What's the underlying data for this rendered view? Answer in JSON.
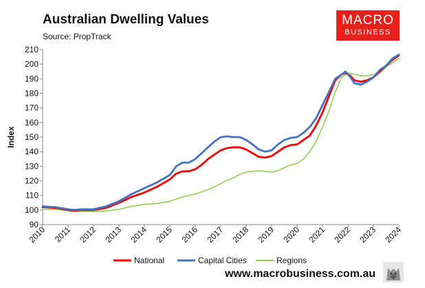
{
  "header": {
    "title": "Australian Dwelling Values",
    "subtitle": "Source: PropTrack"
  },
  "logo": {
    "line1": "MACRO",
    "line2": "BUSINESS"
  },
  "footer": {
    "website": "www.macrobusiness.com.au"
  },
  "colors": {
    "national": "#ff0000",
    "capital": "#4472c4",
    "regions": "#92d050"
  },
  "chart_data": {
    "type": "line",
    "title": "Australian Dwelling Values",
    "xlabel": "",
    "ylabel": "Index",
    "xlim": [
      2010,
      2024
    ],
    "ylim": [
      90,
      210
    ],
    "yticks": [
      90,
      100,
      110,
      120,
      130,
      140,
      150,
      160,
      170,
      180,
      190,
      200,
      210
    ],
    "xticks": [
      2010,
      2011,
      2012,
      2013,
      2014,
      2015,
      2016,
      2017,
      2018,
      2019,
      2020,
      2021,
      2022,
      2023,
      2024
    ],
    "grid": false,
    "legend": "bottom",
    "series": [
      {
        "name": "National",
        "color": "#ff0000",
        "points": [
          [
            2010.0,
            102
          ],
          [
            2010.5,
            101.5
          ],
          [
            2011.0,
            100
          ],
          [
            2011.25,
            99.5
          ],
          [
            2011.5,
            100
          ],
          [
            2012.0,
            100
          ],
          [
            2012.5,
            101.5
          ],
          [
            2013.0,
            105
          ],
          [
            2013.5,
            109
          ],
          [
            2014.0,
            112
          ],
          [
            2014.5,
            116
          ],
          [
            2015.0,
            121
          ],
          [
            2015.25,
            125
          ],
          [
            2015.5,
            126.5
          ],
          [
            2015.75,
            126.5
          ],
          [
            2016.0,
            128
          ],
          [
            2016.25,
            131
          ],
          [
            2016.5,
            135
          ],
          [
            2016.75,
            138
          ],
          [
            2017.0,
            141
          ],
          [
            2017.25,
            142.5
          ],
          [
            2017.5,
            143
          ],
          [
            2017.75,
            143
          ],
          [
            2018.0,
            141.5
          ],
          [
            2018.25,
            139
          ],
          [
            2018.5,
            136.5
          ],
          [
            2018.75,
            136
          ],
          [
            2019.0,
            137
          ],
          [
            2019.25,
            140
          ],
          [
            2019.5,
            143
          ],
          [
            2019.75,
            144.5
          ],
          [
            2020.0,
            145
          ],
          [
            2020.25,
            148
          ],
          [
            2020.5,
            151
          ],
          [
            2020.75,
            158
          ],
          [
            2021.0,
            167
          ],
          [
            2021.25,
            178
          ],
          [
            2021.5,
            189
          ],
          [
            2021.75,
            193
          ],
          [
            2021.9,
            194
          ],
          [
            2022.1,
            192
          ],
          [
            2022.25,
            189
          ],
          [
            2022.5,
            188
          ],
          [
            2022.75,
            189
          ],
          [
            2023.0,
            191
          ],
          [
            2023.25,
            195
          ],
          [
            2023.5,
            199
          ],
          [
            2023.75,
            203
          ],
          [
            2024.0,
            206
          ]
        ]
      },
      {
        "name": "Capital Cities",
        "color": "#4472c4",
        "points": [
          [
            2010.0,
            102.5
          ],
          [
            2010.5,
            102
          ],
          [
            2011.0,
            100.5
          ],
          [
            2011.25,
            100
          ],
          [
            2011.5,
            100.5
          ],
          [
            2012.0,
            100.5
          ],
          [
            2012.5,
            102.5
          ],
          [
            2013.0,
            106
          ],
          [
            2013.5,
            111
          ],
          [
            2014.0,
            115
          ],
          [
            2014.5,
            119
          ],
          [
            2015.0,
            124
          ],
          [
            2015.25,
            130
          ],
          [
            2015.5,
            132.5
          ],
          [
            2015.75,
            132.5
          ],
          [
            2016.0,
            135
          ],
          [
            2016.25,
            139
          ],
          [
            2016.5,
            143
          ],
          [
            2016.75,
            147
          ],
          [
            2017.0,
            150
          ],
          [
            2017.25,
            150.5
          ],
          [
            2017.5,
            150
          ],
          [
            2017.75,
            150
          ],
          [
            2018.0,
            148
          ],
          [
            2018.25,
            145
          ],
          [
            2018.5,
            141.5
          ],
          [
            2018.75,
            140
          ],
          [
            2019.0,
            141
          ],
          [
            2019.25,
            145
          ],
          [
            2019.5,
            148
          ],
          [
            2019.75,
            149.5
          ],
          [
            2020.0,
            150
          ],
          [
            2020.25,
            153
          ],
          [
            2020.5,
            157
          ],
          [
            2020.75,
            163
          ],
          [
            2021.0,
            172
          ],
          [
            2021.25,
            181
          ],
          [
            2021.5,
            190
          ],
          [
            2021.75,
            193
          ],
          [
            2021.9,
            195
          ],
          [
            2022.1,
            191
          ],
          [
            2022.25,
            187
          ],
          [
            2022.5,
            186
          ],
          [
            2022.75,
            188
          ],
          [
            2023.0,
            191
          ],
          [
            2023.25,
            196
          ],
          [
            2023.5,
            199
          ],
          [
            2023.75,
            204
          ],
          [
            2024.0,
            206.5
          ]
        ]
      },
      {
        "name": "Regions",
        "color": "#92d050",
        "points": [
          [
            2010.0,
            100.5
          ],
          [
            2010.5,
            100.5
          ],
          [
            2011.0,
            99.5
          ],
          [
            2011.25,
            99
          ],
          [
            2011.5,
            99
          ],
          [
            2012.0,
            99
          ],
          [
            2012.5,
            99.5
          ],
          [
            2013.0,
            100.5
          ],
          [
            2013.5,
            102.5
          ],
          [
            2014.0,
            104
          ],
          [
            2014.5,
            104.5
          ],
          [
            2015.0,
            106
          ],
          [
            2015.5,
            109
          ],
          [
            2016.0,
            111
          ],
          [
            2016.5,
            114
          ],
          [
            2017.0,
            118
          ],
          [
            2017.25,
            120.5
          ],
          [
            2017.5,
            122
          ],
          [
            2017.75,
            124.5
          ],
          [
            2018.0,
            126
          ],
          [
            2018.25,
            126.5
          ],
          [
            2018.5,
            127
          ],
          [
            2018.75,
            126.5
          ],
          [
            2019.0,
            126
          ],
          [
            2019.25,
            127
          ],
          [
            2019.5,
            129
          ],
          [
            2019.75,
            131
          ],
          [
            2020.0,
            132
          ],
          [
            2020.25,
            135
          ],
          [
            2020.5,
            140
          ],
          [
            2020.75,
            147
          ],
          [
            2021.0,
            157
          ],
          [
            2021.25,
            168
          ],
          [
            2021.5,
            181
          ],
          [
            2021.75,
            191
          ],
          [
            2022.0,
            194
          ],
          [
            2022.25,
            193
          ],
          [
            2022.5,
            192
          ],
          [
            2022.75,
            192
          ],
          [
            2023.0,
            193
          ],
          [
            2023.25,
            194
          ],
          [
            2023.5,
            198
          ],
          [
            2023.75,
            201
          ],
          [
            2024.0,
            204
          ]
        ]
      }
    ]
  }
}
